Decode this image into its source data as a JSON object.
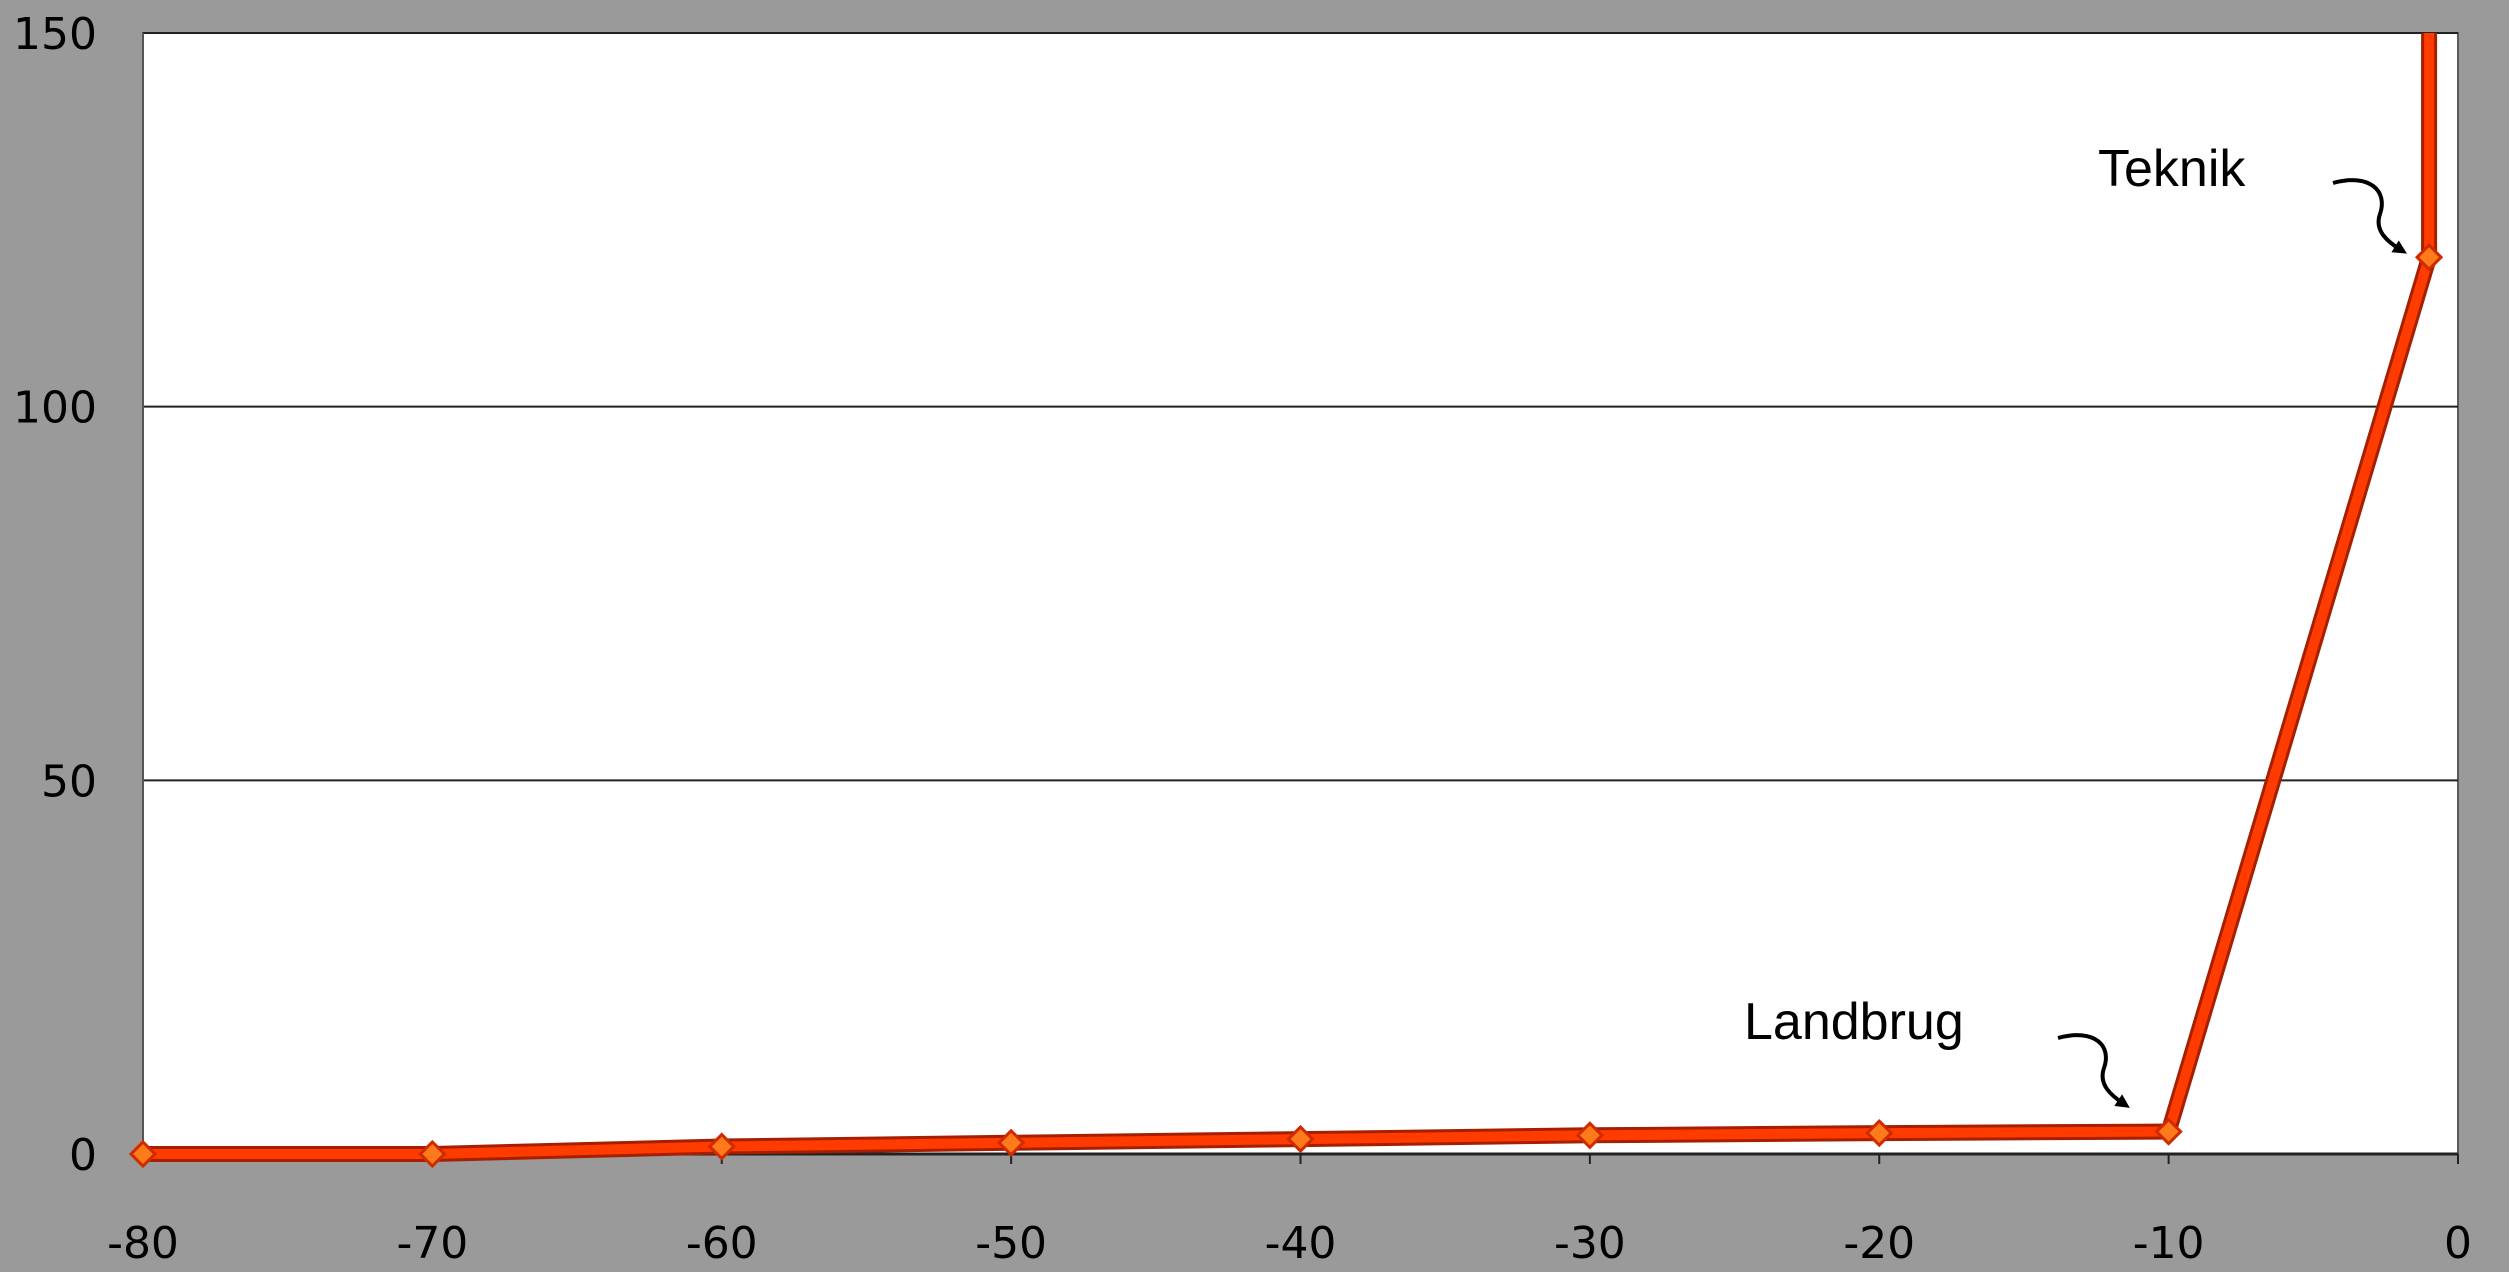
{
  "chart_data": {
    "type": "line",
    "title": "",
    "xlabel": "",
    "ylabel": "",
    "x": [
      -80,
      -70,
      -60,
      -50,
      -40,
      -30,
      -20,
      -10,
      -1
    ],
    "series": [
      {
        "values": [
          0,
          0,
          1,
          1.5,
          2,
          2.5,
          2.8,
          3,
          120
        ]
      }
    ],
    "vertical_segment": {
      "x": -1,
      "y_from": 120,
      "y_to": 150
    },
    "xlim": [
      -80,
      0
    ],
    "ylim": [
      0,
      150
    ],
    "x_ticks": [
      -80,
      -70,
      -60,
      -50,
      -40,
      -30,
      -20,
      -10,
      0
    ],
    "x_tick_labels": [
      "-80",
      "-70",
      "-60",
      "-50",
      "-40",
      "-30",
      "-20",
      "-10",
      "0"
    ],
    "y_ticks": [
      0,
      50,
      100,
      150
    ],
    "y_tick_labels": [
      "0",
      "50",
      "100",
      "150"
    ],
    "grid": "horizontal",
    "legend": "none",
    "annotations": [
      {
        "text": "Landbrug",
        "target_x": -10,
        "target_y": 3
      },
      {
        "text": "Teknik",
        "target_x": -1,
        "target_y": 120
      }
    ],
    "colors": {
      "background": "#9a9a9a",
      "plot_area": "#ffffff",
      "line": "#ff3b00",
      "line_outline": "#a51f00",
      "marker_fill": "#ff7a1a",
      "marker_stroke": "#d12a00",
      "gridline": "#222222"
    }
  }
}
